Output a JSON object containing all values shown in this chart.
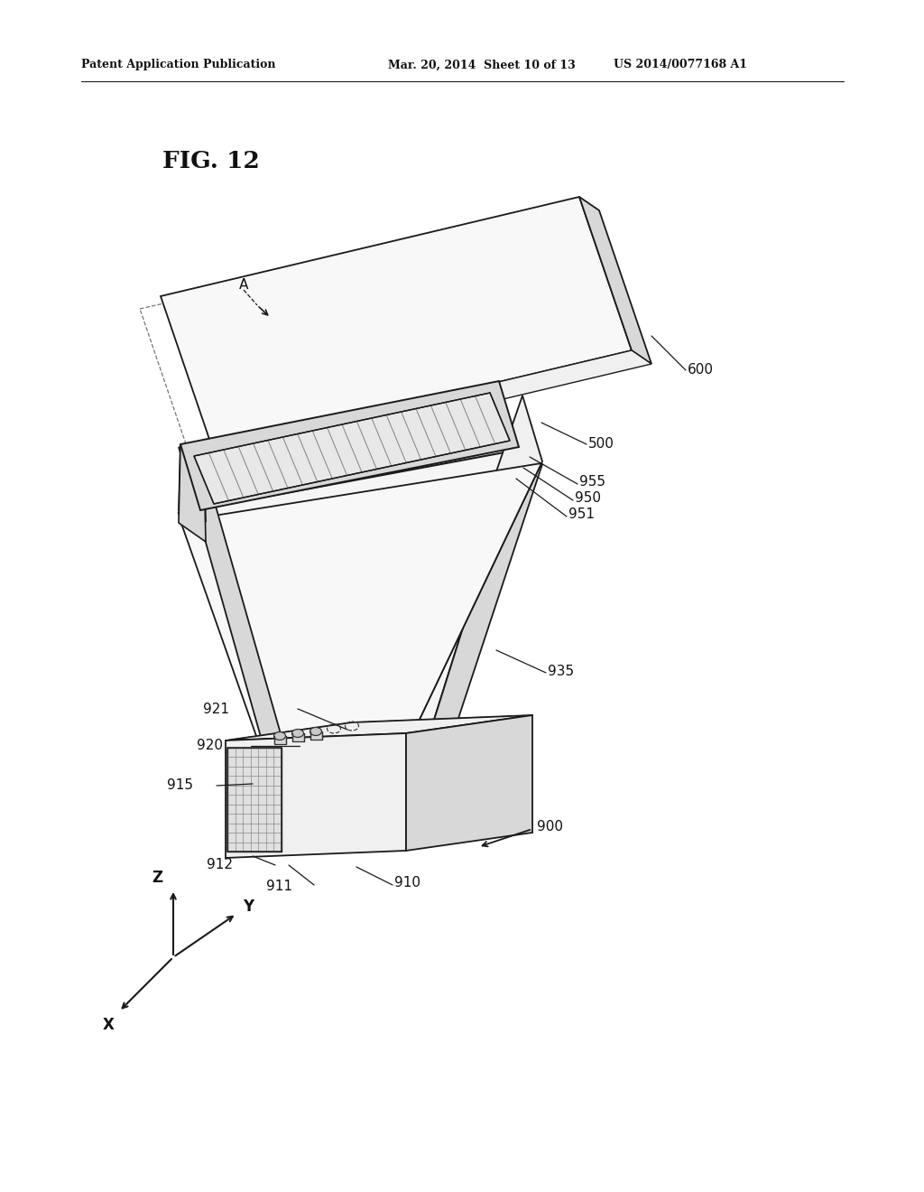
{
  "background_color": "#ffffff",
  "header_left": "Patent Application Publication",
  "header_center": "Mar. 20, 2014  Sheet 10 of 13",
  "header_right": "US 2014/0077168 A1",
  "fig_label": "FIG. 12",
  "line_color": "#1a1a1a",
  "fill_white": "#ffffff",
  "fill_light": "#f0f0f0",
  "fill_mid": "#d8d8d8",
  "fill_dark": "#b8b8b8",
  "fill_very_light": "#f8f8f8"
}
